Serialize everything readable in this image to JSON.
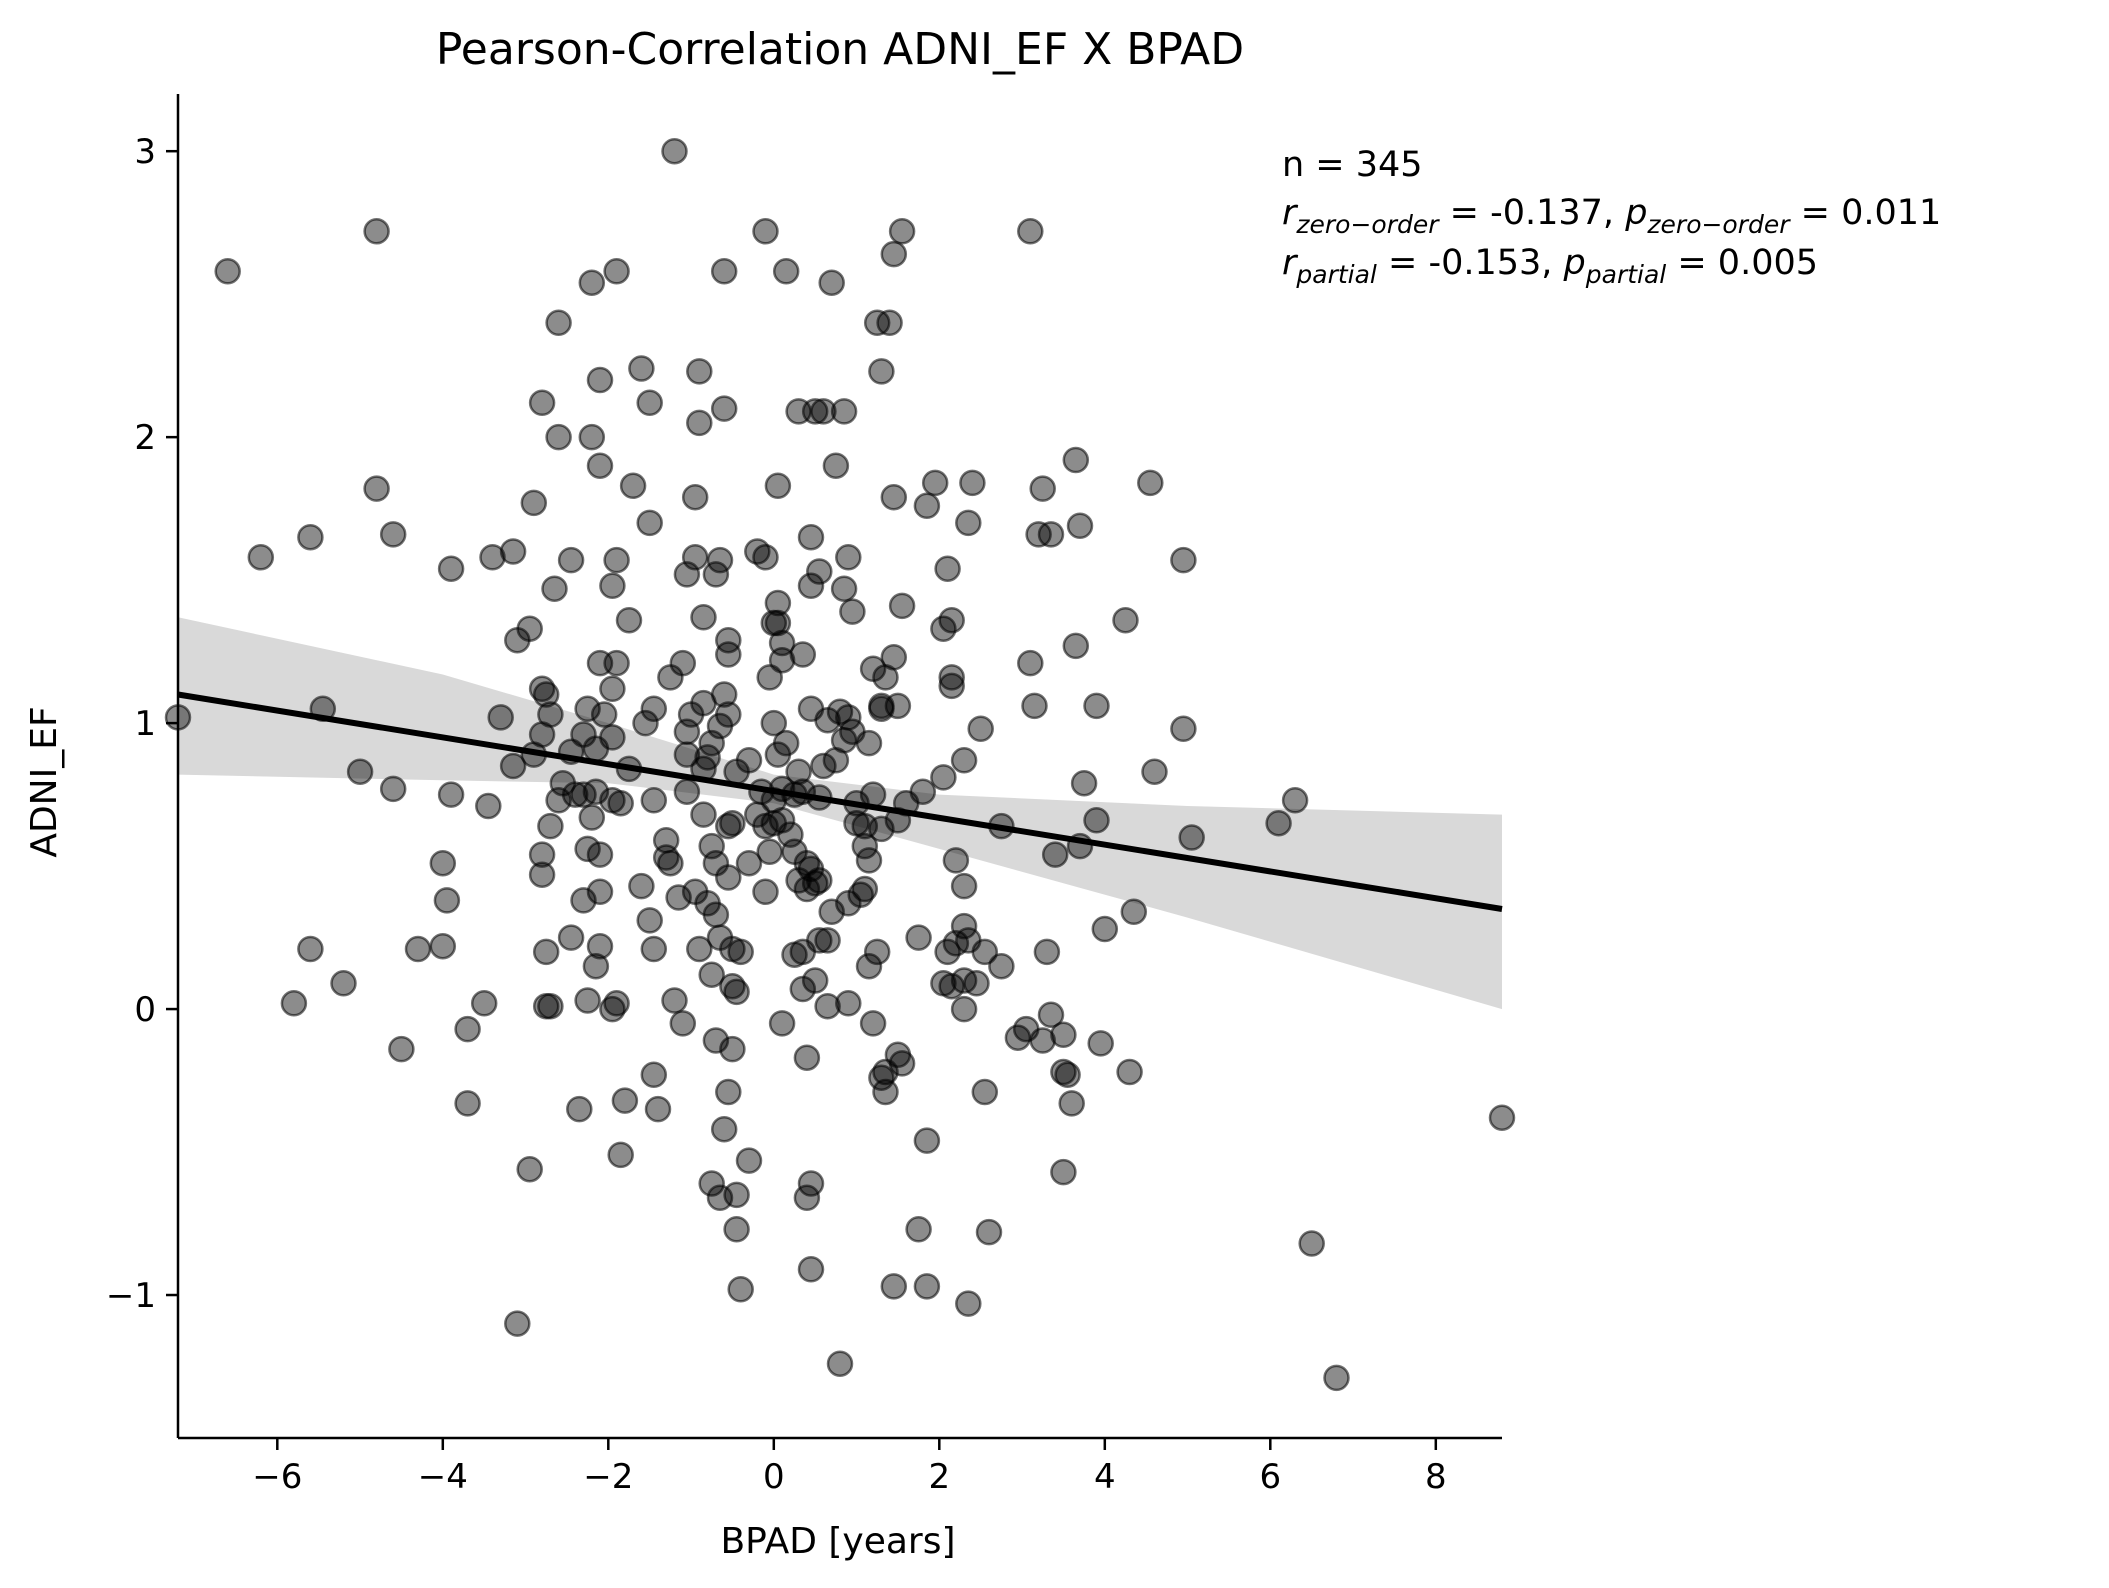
{
  "chart_data": {
    "type": "scatter",
    "title": "Pearson-Correlation ADNI_EF X BPAD",
    "xlabel": "BPAD [years]",
    "ylabel": "ADNI_EF",
    "xlim": [
      -7.2,
      8.8
    ],
    "ylim": [
      -1.5,
      3.2
    ],
    "x_ticks": [
      -6,
      -4,
      -2,
      0,
      2,
      4,
      6,
      8
    ],
    "x_tick_labels": [
      "−6",
      "−4",
      "−2",
      "0",
      "2",
      "4",
      "6",
      "8"
    ],
    "y_ticks": [
      -1,
      0,
      1,
      2,
      3
    ],
    "y_tick_labels": [
      "−1",
      "0",
      "1",
      "2",
      "3"
    ],
    "grid": false,
    "colors": {
      "points": "#000000",
      "point_alpha": 0.45,
      "regression_line": "#000000",
      "confidence_band": "#d9d9d9"
    },
    "regression": {
      "x_range": [
        -7.2,
        8.8
      ],
      "y_at_start": 1.1,
      "y_at_end": 0.35,
      "ci_upper": [
        [
          -7.2,
          1.37
        ],
        [
          -4.0,
          1.17
        ],
        [
          -2.0,
          1.0
        ],
        [
          0.0,
          0.82
        ],
        [
          2.0,
          0.75
        ],
        [
          5.0,
          0.71
        ],
        [
          8.8,
          0.68
        ]
      ],
      "ci_lower": [
        [
          -7.2,
          0.82
        ],
        [
          -4.0,
          0.8
        ],
        [
          -2.0,
          0.79
        ],
        [
          0.0,
          0.72
        ],
        [
          2.0,
          0.56
        ],
        [
          5.0,
          0.32
        ],
        [
          8.8,
          0.0
        ]
      ]
    },
    "annotation": {
      "n_text": "n = 345",
      "line2": {
        "r_sub": "zero−order",
        "r_value": " = -0.137, ",
        "p_sub": "zero−order",
        "p_value": " = 0.011"
      },
      "line3": {
        "r_sub": "partial",
        "r_value": " = -0.153, ",
        "p_sub": "partial",
        "p_value": " = 0.005"
      }
    },
    "points": [
      [
        -1.2,
        3.0
      ],
      [
        -4.8,
        2.72
      ],
      [
        -6.6,
        2.58
      ],
      [
        -0.1,
        2.72
      ],
      [
        1.55,
        2.72
      ],
      [
        3.1,
        2.72
      ],
      [
        -0.6,
        2.58
      ],
      [
        0.15,
        2.58
      ],
      [
        -1.9,
        2.58
      ],
      [
        1.45,
        2.64
      ],
      [
        -2.2,
        2.54
      ],
      [
        0.7,
        2.54
      ],
      [
        -2.6,
        2.4
      ],
      [
        1.25,
        2.4
      ],
      [
        1.4,
        2.4
      ],
      [
        -2.1,
        2.2
      ],
      [
        -1.6,
        2.24
      ],
      [
        -0.9,
        2.23
      ],
      [
        1.3,
        2.23
      ],
      [
        -1.5,
        2.12
      ],
      [
        -2.8,
        2.12
      ],
      [
        -0.6,
        2.1
      ],
      [
        0.3,
        2.09
      ],
      [
        0.5,
        2.09
      ],
      [
        0.6,
        2.09
      ],
      [
        0.85,
        2.09
      ],
      [
        -2.6,
        2.0
      ],
      [
        -2.2,
        2.0
      ],
      [
        -0.9,
        2.05
      ],
      [
        -2.1,
        1.9
      ],
      [
        0.75,
        1.9
      ],
      [
        -4.8,
        1.82
      ],
      [
        -1.7,
        1.83
      ],
      [
        0.05,
        1.83
      ],
      [
        1.95,
        1.84
      ],
      [
        2.4,
        1.84
      ],
      [
        3.25,
        1.82
      ],
      [
        4.55,
        1.84
      ],
      [
        -0.95,
        1.79
      ],
      [
        -2.9,
        1.77
      ],
      [
        1.45,
        1.79
      ],
      [
        1.85,
        1.76
      ],
      [
        3.65,
        1.92
      ],
      [
        -5.6,
        1.65
      ],
      [
        -4.6,
        1.66
      ],
      [
        -1.5,
        1.7
      ],
      [
        0.45,
        1.65
      ],
      [
        2.35,
        1.7
      ],
      [
        3.2,
        1.66
      ],
      [
        3.35,
        1.66
      ],
      [
        3.7,
        1.69
      ],
      [
        -6.2,
        1.58
      ],
      [
        -3.4,
        1.58
      ],
      [
        -3.15,
        1.6
      ],
      [
        -2.45,
        1.57
      ],
      [
        -1.9,
        1.57
      ],
      [
        -0.95,
        1.58
      ],
      [
        -0.65,
        1.57
      ],
      [
        -0.2,
        1.6
      ],
      [
        -0.1,
        1.58
      ],
      [
        0.55,
        1.53
      ],
      [
        0.9,
        1.58
      ],
      [
        4.95,
        1.57
      ],
      [
        -3.9,
        1.54
      ],
      [
        -1.05,
        1.52
      ],
      [
        -0.7,
        1.52
      ],
      [
        0.45,
        1.48
      ],
      [
        0.85,
        1.47
      ],
      [
        2.1,
        1.54
      ],
      [
        -2.65,
        1.47
      ],
      [
        -1.95,
        1.48
      ],
      [
        0.05,
        1.42
      ],
      [
        0.95,
        1.39
      ],
      [
        1.55,
        1.41
      ],
      [
        -1.75,
        1.36
      ],
      [
        -0.85,
        1.37
      ],
      [
        0.0,
        1.35
      ],
      [
        0.05,
        1.35
      ],
      [
        2.15,
        1.36
      ],
      [
        4.25,
        1.36
      ],
      [
        -2.95,
        1.33
      ],
      [
        -3.1,
        1.29
      ],
      [
        -0.55,
        1.29
      ],
      [
        0.1,
        1.28
      ],
      [
        2.05,
        1.33
      ],
      [
        -2.1,
        1.21
      ],
      [
        -1.9,
        1.21
      ],
      [
        -1.1,
        1.21
      ],
      [
        -0.55,
        1.24
      ],
      [
        0.35,
        1.24
      ],
      [
        1.2,
        1.19
      ],
      [
        1.45,
        1.23
      ],
      [
        3.1,
        1.21
      ],
      [
        3.65,
        1.27
      ],
      [
        -1.25,
        1.16
      ],
      [
        -0.05,
        1.16
      ],
      [
        0.1,
        1.22
      ],
      [
        1.35,
        1.16
      ],
      [
        2.15,
        1.16
      ],
      [
        -2.8,
        1.12
      ],
      [
        -2.75,
        1.1
      ],
      [
        -1.95,
        1.12
      ],
      [
        -0.6,
        1.1
      ],
      [
        -0.85,
        1.07
      ],
      [
        0.45,
        1.05
      ],
      [
        0.8,
        1.04
      ],
      [
        1.3,
        1.06
      ],
      [
        1.5,
        1.06
      ],
      [
        2.15,
        1.13
      ],
      [
        3.15,
        1.06
      ],
      [
        3.9,
        1.06
      ],
      [
        -5.45,
        1.05
      ],
      [
        -3.3,
        1.02
      ],
      [
        -2.7,
        1.03
      ],
      [
        -2.25,
        1.05
      ],
      [
        -2.05,
        1.03
      ],
      [
        -1.45,
        1.05
      ],
      [
        -1.55,
        1.0
      ],
      [
        -1.0,
        1.03
      ],
      [
        -0.55,
        1.03
      ],
      [
        0.65,
        1.01
      ],
      [
        0.9,
        1.02
      ],
      [
        1.3,
        1.05
      ],
      [
        2.5,
        0.98
      ],
      [
        4.95,
        0.98
      ],
      [
        -7.2,
        1.02
      ],
      [
        -2.3,
        0.96
      ],
      [
        -1.95,
        0.95
      ],
      [
        -1.05,
        0.97
      ],
      [
        -0.75,
        0.93
      ],
      [
        -0.65,
        0.99
      ],
      [
        0.0,
        1.0
      ],
      [
        0.15,
        0.93
      ],
      [
        0.85,
        0.94
      ],
      [
        0.95,
        0.97
      ],
      [
        1.15,
        0.93
      ],
      [
        -2.8,
        0.96
      ],
      [
        -2.45,
        0.9
      ],
      [
        -2.15,
        0.91
      ],
      [
        -1.05,
        0.89
      ],
      [
        -0.8,
        0.88
      ],
      [
        -0.3,
        0.87
      ],
      [
        0.05,
        0.89
      ],
      [
        0.75,
        0.87
      ],
      [
        2.05,
        0.81
      ],
      [
        2.3,
        0.87
      ],
      [
        -5.0,
        0.83
      ],
      [
        -3.15,
        0.85
      ],
      [
        -2.9,
        0.89
      ],
      [
        -1.75,
        0.84
      ],
      [
        -0.85,
        0.84
      ],
      [
        -0.45,
        0.83
      ],
      [
        0.3,
        0.83
      ],
      [
        0.6,
        0.85
      ],
      [
        1.8,
        0.76
      ],
      [
        3.75,
        0.79
      ],
      [
        4.6,
        0.83
      ],
      [
        -4.6,
        0.77
      ],
      [
        -3.9,
        0.75
      ],
      [
        -2.55,
        0.79
      ],
      [
        -2.3,
        0.75
      ],
      [
        -2.15,
        0.76
      ],
      [
        -1.95,
        0.73
      ],
      [
        -1.85,
        0.72
      ],
      [
        -1.45,
        0.73
      ],
      [
        -1.05,
        0.76
      ],
      [
        -0.15,
        0.76
      ],
      [
        0.0,
        0.73
      ],
      [
        0.1,
        0.77
      ],
      [
        0.25,
        0.75
      ],
      [
        0.35,
        0.76
      ],
      [
        0.55,
        0.74
      ],
      [
        1.0,
        0.72
      ],
      [
        1.2,
        0.75
      ],
      [
        1.6,
        0.72
      ],
      [
        6.3,
        0.73
      ],
      [
        -3.45,
        0.71
      ],
      [
        -2.6,
        0.73
      ],
      [
        -2.4,
        0.75
      ],
      [
        -0.85,
        0.68
      ],
      [
        -0.2,
        0.68
      ],
      [
        0.0,
        0.65
      ],
      [
        0.1,
        0.66
      ],
      [
        1.5,
        0.66
      ],
      [
        -2.7,
        0.64
      ],
      [
        -2.2,
        0.67
      ],
      [
        -0.55,
        0.64
      ],
      [
        -0.5,
        0.65
      ],
      [
        -0.1,
        0.64
      ],
      [
        1.0,
        0.65
      ],
      [
        1.1,
        0.64
      ],
      [
        1.3,
        0.63
      ],
      [
        2.75,
        0.64
      ],
      [
        3.9,
        0.66
      ],
      [
        6.1,
        0.65
      ],
      [
        -1.3,
        0.59
      ],
      [
        -0.75,
        0.57
      ],
      [
        0.2,
        0.61
      ],
      [
        0.25,
        0.55
      ],
      [
        1.1,
        0.57
      ],
      [
        1.15,
        0.52
      ],
      [
        3.7,
        0.57
      ],
      [
        5.05,
        0.6
      ],
      [
        -4.0,
        0.51
      ],
      [
        -2.8,
        0.54
      ],
      [
        -2.25,
        0.56
      ],
      [
        -2.1,
        0.54
      ],
      [
        -1.3,
        0.53
      ],
      [
        -0.7,
        0.51
      ],
      [
        -0.3,
        0.51
      ],
      [
        -0.05,
        0.55
      ],
      [
        0.4,
        0.51
      ],
      [
        0.45,
        0.49
      ],
      [
        2.2,
        0.52
      ],
      [
        3.4,
        0.54
      ],
      [
        -2.8,
        0.47
      ],
      [
        -1.25,
        0.51
      ],
      [
        -0.55,
        0.46
      ],
      [
        -0.1,
        0.41
      ],
      [
        0.3,
        0.45
      ],
      [
        0.5,
        0.44
      ],
      [
        0.55,
        0.45
      ],
      [
        0.9,
        0.37
      ],
      [
        1.1,
        0.42
      ],
      [
        2.3,
        0.43
      ],
      [
        -3.95,
        0.38
      ],
      [
        -2.3,
        0.38
      ],
      [
        -2.1,
        0.41
      ],
      [
        -1.6,
        0.43
      ],
      [
        -0.95,
        0.41
      ],
      [
        -0.8,
        0.37
      ],
      [
        0.4,
        0.42
      ],
      [
        0.7,
        0.34
      ],
      [
        1.05,
        0.4
      ],
      [
        2.3,
        0.29
      ],
      [
        4.0,
        0.28
      ],
      [
        4.35,
        0.34
      ],
      [
        -1.5,
        0.31
      ],
      [
        -1.15,
        0.39
      ],
      [
        -0.7,
        0.33
      ],
      [
        -0.65,
        0.25
      ],
      [
        0.55,
        0.24
      ],
      [
        0.65,
        0.24
      ],
      [
        1.75,
        0.25
      ],
      [
        2.2,
        0.23
      ],
      [
        2.35,
        0.24
      ],
      [
        -5.6,
        0.21
      ],
      [
        -4.3,
        0.21
      ],
      [
        -4.0,
        0.22
      ],
      [
        -2.45,
        0.25
      ],
      [
        -2.75,
        0.2
      ],
      [
        -2.1,
        0.22
      ],
      [
        -1.45,
        0.21
      ],
      [
        -0.9,
        0.21
      ],
      [
        -0.5,
        0.21
      ],
      [
        -0.4,
        0.2
      ],
      [
        0.25,
        0.19
      ],
      [
        0.35,
        0.2
      ],
      [
        1.15,
        0.15
      ],
      [
        1.25,
        0.2
      ],
      [
        2.1,
        0.2
      ],
      [
        2.55,
        0.2
      ],
      [
        2.75,
        0.15
      ],
      [
        3.3,
        0.2
      ],
      [
        -5.2,
        0.09
      ],
      [
        -2.15,
        0.15
      ],
      [
        -0.75,
        0.12
      ],
      [
        -0.5,
        0.08
      ],
      [
        -0.45,
        0.06
      ],
      [
        0.35,
        0.07
      ],
      [
        0.5,
        0.1
      ],
      [
        2.05,
        0.09
      ],
      [
        2.15,
        0.08
      ],
      [
        2.3,
        0.1
      ],
      [
        2.45,
        0.09
      ],
      [
        -5.8,
        0.02
      ],
      [
        -3.5,
        0.02
      ],
      [
        -2.75,
        0.01
      ],
      [
        -2.7,
        0.01
      ],
      [
        -2.25,
        0.03
      ],
      [
        -1.95,
        0.0
      ],
      [
        -1.9,
        0.02
      ],
      [
        -1.2,
        0.03
      ],
      [
        0.65,
        0.01
      ],
      [
        0.9,
        0.02
      ],
      [
        2.3,
        0.0
      ],
      [
        -3.7,
        -0.07
      ],
      [
        -1.1,
        -0.05
      ],
      [
        0.1,
        -0.05
      ],
      [
        1.2,
        -0.05
      ],
      [
        2.95,
        -0.1
      ],
      [
        3.05,
        -0.07
      ],
      [
        3.25,
        -0.11
      ],
      [
        3.35,
        -0.02
      ],
      [
        3.5,
        -0.09
      ],
      [
        -4.5,
        -0.14
      ],
      [
        -0.7,
        -0.11
      ],
      [
        -0.5,
        -0.14
      ],
      [
        0.4,
        -0.17
      ],
      [
        1.5,
        -0.16
      ],
      [
        1.55,
        -0.19
      ],
      [
        3.95,
        -0.12
      ],
      [
        -1.45,
        -0.23
      ],
      [
        1.3,
        -0.24
      ],
      [
        1.35,
        -0.22
      ],
      [
        3.5,
        -0.22
      ],
      [
        3.55,
        -0.23
      ],
      [
        4.3,
        -0.22
      ],
      [
        -3.7,
        -0.33
      ],
      [
        -2.35,
        -0.35
      ],
      [
        -1.8,
        -0.32
      ],
      [
        -1.4,
        -0.35
      ],
      [
        -0.55,
        -0.29
      ],
      [
        1.35,
        -0.29
      ],
      [
        2.55,
        -0.29
      ],
      [
        3.6,
        -0.33
      ],
      [
        8.8,
        -0.38
      ],
      [
        -0.6,
        -0.42
      ],
      [
        -1.85,
        -0.51
      ],
      [
        -2.95,
        -0.56
      ],
      [
        -0.3,
        -0.53
      ],
      [
        1.85,
        -0.46
      ],
      [
        3.5,
        -0.57
      ],
      [
        -0.75,
        -0.61
      ],
      [
        -0.65,
        -0.66
      ],
      [
        -0.45,
        -0.65
      ],
      [
        0.4,
        -0.66
      ],
      [
        0.45,
        -0.61
      ],
      [
        -0.45,
        -0.77
      ],
      [
        1.75,
        -0.77
      ],
      [
        2.6,
        -0.78
      ],
      [
        6.5,
        -0.82
      ],
      [
        0.45,
        -0.91
      ],
      [
        -0.4,
        -0.98
      ],
      [
        1.45,
        -0.97
      ],
      [
        1.85,
        -0.97
      ],
      [
        2.35,
        -1.03
      ],
      [
        -3.1,
        -1.1
      ],
      [
        0.8,
        -1.24
      ],
      [
        6.8,
        -1.29
      ]
    ]
  }
}
